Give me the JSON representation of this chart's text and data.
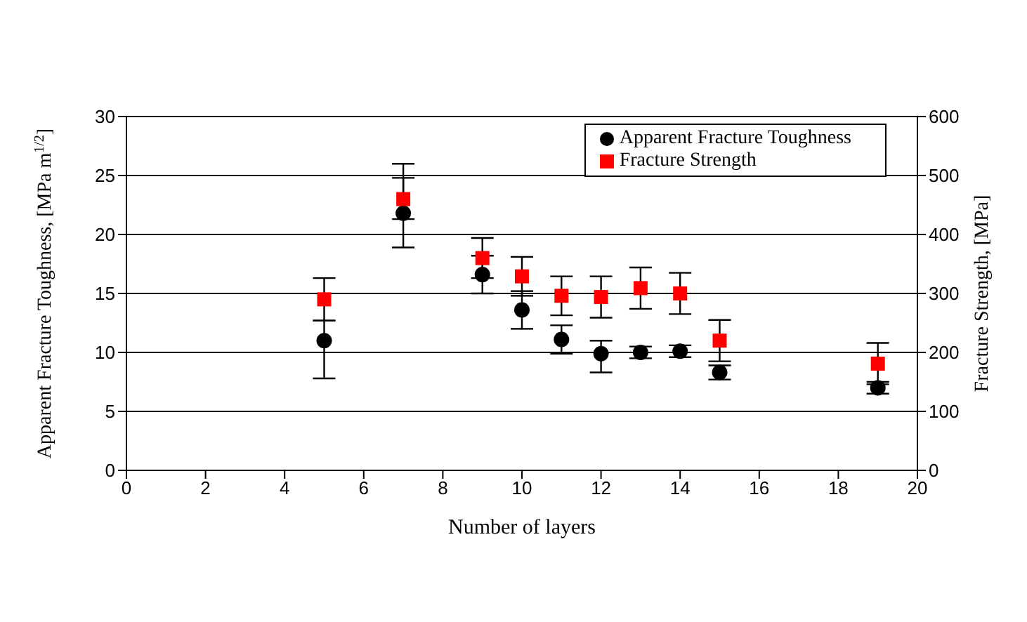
{
  "chart_data": {
    "type": "scatter",
    "xlabel": "Number of  layers",
    "ylabel": "Apparent Fracture Toughness, [MPa m$^{1/2}$]",
    "y2label": "Fracture Strength, [MPa]",
    "x": [
      5,
      7,
      9,
      10,
      11,
      12,
      13,
      14,
      15,
      19
    ],
    "series": [
      {
        "name": "Apparent Fracture Toughness",
        "color": "#000000",
        "marker": "circle",
        "values": [
          11.0,
          21.8,
          16.6,
          13.6,
          11.1,
          9.9,
          10.0,
          10.1,
          8.3,
          7.0
        ],
        "errors": [
          [
            7.8,
            12.7
          ],
          [
            18.9,
            24.8
          ],
          1.6,
          1.6,
          1.2,
          [
            8.3,
            11.0
          ],
          0.5,
          0.5,
          0.6,
          0.5
        ]
      },
      {
        "name": "Fracture Strength",
        "color": "#ff0000",
        "marker": "square",
        "axis": "y2",
        "values": [
          290,
          460,
          360,
          329,
          296,
          294,
          309,
          300,
          220,
          181
        ],
        "errors": [
          36,
          [
            426,
            520
          ],
          34,
          33,
          33,
          35,
          35,
          35,
          35,
          35
        ]
      }
    ],
    "xlim": [
      0,
      20
    ],
    "xticks": [
      0,
      2,
      4,
      6,
      8,
      10,
      12,
      14,
      16,
      18,
      20
    ],
    "ylim": [
      0,
      30
    ],
    "yticks": [
      0,
      5,
      10,
      15,
      20,
      25,
      30
    ],
    "y2lim": [
      0,
      600
    ],
    "y2ticks": [
      0,
      100,
      200,
      300,
      400,
      500,
      600
    ],
    "grid": "y",
    "legend": "top right"
  }
}
